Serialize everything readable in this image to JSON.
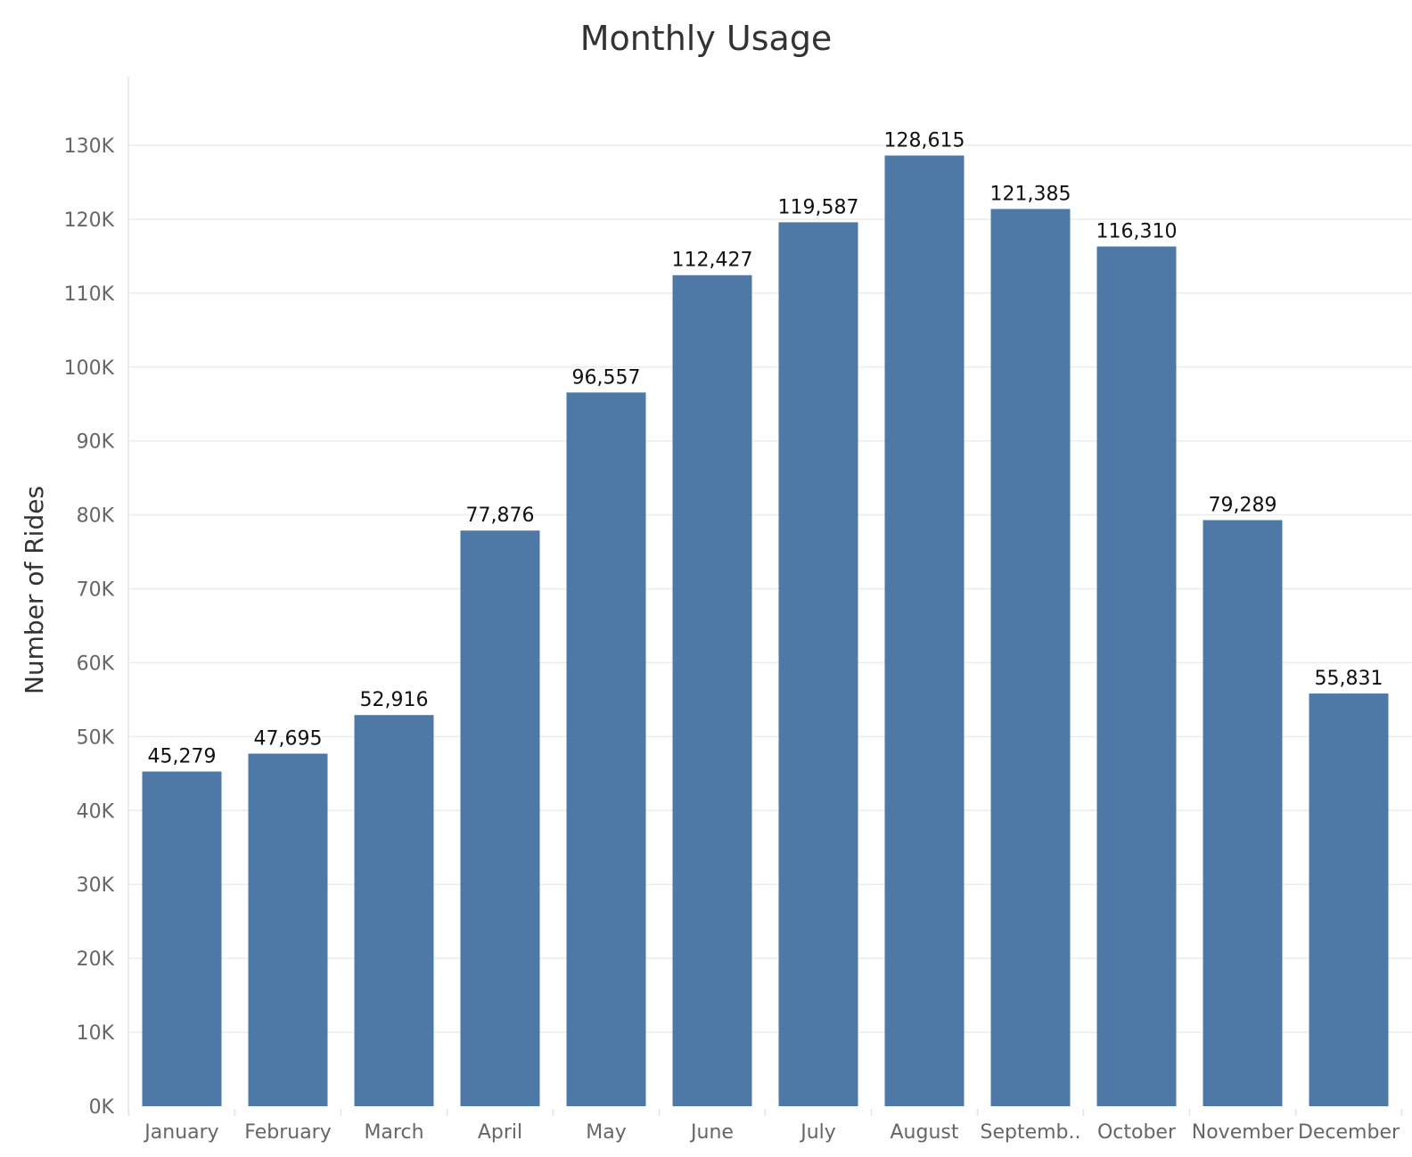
{
  "chart_data": {
    "type": "bar",
    "title": "Monthly Usage",
    "xlabel": "",
    "ylabel": "Number of Rides",
    "categories": [
      "January",
      "February",
      "March",
      "April",
      "May",
      "June",
      "July",
      "August",
      "Septemb..",
      "October",
      "November",
      "December"
    ],
    "values": [
      45279,
      47695,
      52916,
      77876,
      96557,
      112427,
      119587,
      128615,
      121385,
      116310,
      79289,
      55831
    ],
    "data_labels": [
      "45,279",
      "47,695",
      "52,916",
      "77,876",
      "96,557",
      "112,427",
      "119,587",
      "128,615",
      "121,385",
      "116,310",
      "79,289",
      "55,831"
    ],
    "ylim": [
      0,
      130000
    ],
    "yticks": [
      0,
      10000,
      20000,
      30000,
      40000,
      50000,
      60000,
      70000,
      80000,
      90000,
      100000,
      110000,
      120000,
      130000
    ],
    "ytick_labels": [
      "0K",
      "10K",
      "20K",
      "30K",
      "40K",
      "50K",
      "60K",
      "70K",
      "80K",
      "90K",
      "100K",
      "110K",
      "120K",
      "130K"
    ],
    "grid": true,
    "bar_color": "#4e79a7"
  }
}
